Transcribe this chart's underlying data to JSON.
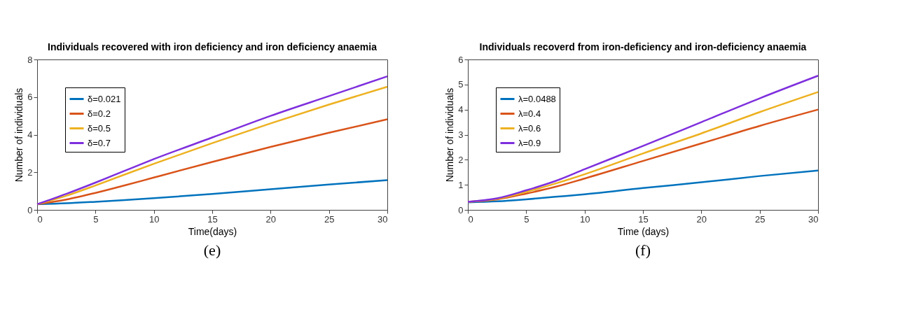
{
  "chart_data": [
    {
      "type": "line",
      "title": "Individuals recovered with iron deficiency and iron deficiency anaemia",
      "xlabel": "Time(days)",
      "ylabel": "Number of individuals",
      "x": [
        0,
        2.5,
        5,
        7.5,
        10,
        15,
        20,
        25,
        30
      ],
      "series": [
        {
          "name": "δ=0.021",
          "color": "#0072bd",
          "values": [
            0.3,
            0.35,
            0.43,
            0.52,
            0.62,
            0.85,
            1.1,
            1.35,
            1.58
          ]
        },
        {
          "name": "δ=0.2",
          "color": "#d95319",
          "values": [
            0.3,
            0.55,
            0.9,
            1.3,
            1.72,
            2.55,
            3.35,
            4.1,
            4.82
          ]
        },
        {
          "name": "δ=0.5",
          "color": "#edb120",
          "values": [
            0.3,
            0.75,
            1.3,
            1.88,
            2.45,
            3.55,
            4.6,
            5.6,
            6.55
          ]
        },
        {
          "name": "δ=0.7",
          "color": "#7e2fdd",
          "values": [
            0.3,
            0.85,
            1.45,
            2.08,
            2.7,
            3.85,
            5.0,
            6.05,
            7.1
          ]
        }
      ],
      "xlim": [
        0,
        30
      ],
      "ylim": [
        0,
        8
      ],
      "xticks": [
        0,
        5,
        10,
        15,
        20,
        25,
        30
      ],
      "yticks": [
        0,
        2,
        4,
        6,
        8
      ],
      "legend": "top left",
      "grid": false,
      "line_style": "solid",
      "marker": "none",
      "annotations": [
        "(e)"
      ]
    },
    {
      "type": "line",
      "title": "Individuals recoverd from iron-deficiency and iron-deficiency anaemia",
      "xlabel": "Time (days)",
      "ylabel": "Number of individuals",
      "x": [
        0,
        2.5,
        5,
        7.5,
        10,
        15,
        20,
        25,
        30
      ],
      "series": [
        {
          "name": "λ=0.0488",
          "color": "#0072bd",
          "values": [
            0.3,
            0.34,
            0.42,
            0.52,
            0.62,
            0.87,
            1.1,
            1.35,
            1.57
          ]
        },
        {
          "name": "λ=0.4",
          "color": "#d95319",
          "values": [
            0.32,
            0.42,
            0.65,
            0.92,
            1.25,
            1.95,
            2.65,
            3.35,
            4.0
          ]
        },
        {
          "name": "λ=0.6",
          "color": "#edb120",
          "values": [
            0.32,
            0.44,
            0.72,
            1.05,
            1.42,
            2.25,
            3.05,
            3.9,
            4.7
          ]
        },
        {
          "name": "λ=0.9",
          "color": "#7e2fdd",
          "values": [
            0.32,
            0.46,
            0.78,
            1.15,
            1.62,
            2.55,
            3.5,
            4.45,
            5.35
          ]
        }
      ],
      "xlim": [
        0,
        30
      ],
      "ylim": [
        0,
        6
      ],
      "xticks": [
        0,
        5,
        10,
        15,
        20,
        25,
        30
      ],
      "yticks": [
        0,
        1,
        2,
        3,
        4,
        5,
        6
      ],
      "legend": "top left",
      "grid": false,
      "line_style": "solid",
      "marker": "none",
      "annotations": [
        "(f)"
      ]
    }
  ]
}
